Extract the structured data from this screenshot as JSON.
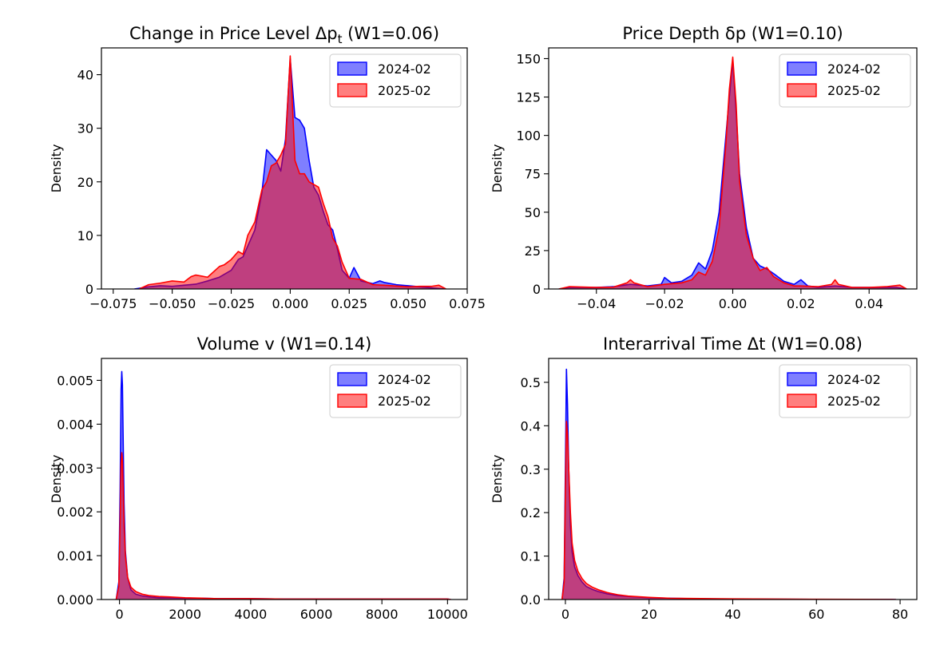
{
  "colors": {
    "series_a_fill": "#0000ff",
    "series_a_edge": "#0000ff",
    "series_b_fill": "#ff0000",
    "series_b_edge": "#ff0000"
  },
  "chart_data": [
    {
      "type": "area",
      "title": "Change in Price Level Δp",
      "title_sub": "t",
      "title_suffix": " (W1=0.06)",
      "xlabel": "",
      "ylabel": "Density",
      "xlim": [
        -0.08,
        0.075
      ],
      "ylim": [
        0,
        45
      ],
      "xticks": [
        -0.075,
        -0.05,
        -0.025,
        0.0,
        0.025,
        0.05,
        0.075
      ],
      "xtick_labels": [
        "−0.075",
        "−0.050",
        "−0.025",
        "0.000",
        "0.025",
        "0.050",
        "0.075"
      ],
      "yticks": [
        0,
        10,
        20,
        30,
        40
      ],
      "ytick_labels": [
        "0",
        "10",
        "20",
        "30",
        "40"
      ],
      "legend": "top-right",
      "series": [
        {
          "name": "2024-02",
          "x": [
            -0.066,
            -0.06,
            -0.055,
            -0.05,
            -0.045,
            -0.04,
            -0.035,
            -0.03,
            -0.025,
            -0.022,
            -0.02,
            -0.018,
            -0.015,
            -0.012,
            -0.01,
            -0.008,
            -0.006,
            -0.004,
            -0.002,
            0.0,
            0.002,
            0.004,
            0.006,
            0.008,
            0.01,
            0.012,
            0.014,
            0.016,
            0.018,
            0.02,
            0.022,
            0.025,
            0.027,
            0.03,
            0.035,
            0.038,
            0.04,
            0.045,
            0.05,
            0.055,
            0.06,
            0.066
          ],
          "y": [
            0,
            0.4,
            0.6,
            0.5,
            0.7,
            0.9,
            1.5,
            2.2,
            3.5,
            5.5,
            6,
            8,
            11,
            18,
            26,
            25,
            24,
            22,
            28,
            43,
            32,
            31.5,
            30,
            24,
            19,
            17.5,
            14.5,
            12,
            11,
            7.5,
            3.5,
            2,
            4,
            1.5,
            1,
            1.5,
            1.2,
            0.8,
            0.6,
            0.4,
            0.2,
            0
          ]
        },
        {
          "name": "2025-02",
          "x": [
            -0.064,
            -0.06,
            -0.055,
            -0.05,
            -0.045,
            -0.042,
            -0.04,
            -0.035,
            -0.03,
            -0.028,
            -0.025,
            -0.022,
            -0.02,
            -0.018,
            -0.015,
            -0.012,
            -0.01,
            -0.008,
            -0.006,
            -0.004,
            -0.002,
            0.0,
            0.002,
            0.004,
            0.006,
            0.008,
            0.01,
            0.012,
            0.014,
            0.016,
            0.018,
            0.02,
            0.022,
            0.025,
            0.03,
            0.035,
            0.04,
            0.05,
            0.055,
            0.06,
            0.063,
            0.066
          ],
          "y": [
            0,
            0.8,
            1.1,
            1.5,
            1.3,
            2.3,
            2.6,
            2.2,
            4.2,
            4.5,
            5.5,
            7,
            6.5,
            10,
            12.5,
            18.5,
            20,
            23,
            23.5,
            25,
            27,
            43.5,
            24,
            21.5,
            21.5,
            20,
            19.5,
            19,
            16,
            13.5,
            9.5,
            8,
            5,
            2,
            1.8,
            0.8,
            0.7,
            0.4,
            0.5,
            0.5,
            0.7,
            0
          ]
        }
      ]
    },
    {
      "type": "area",
      "title": "Price Depth δp",
      "title_sub": "",
      "title_suffix": " (W1=0.10)",
      "xlabel": "",
      "ylabel": "Density",
      "xlim": [
        -0.054,
        0.054
      ],
      "ylim": [
        0,
        157
      ],
      "xticks": [
        -0.04,
        -0.02,
        0.0,
        0.02,
        0.04
      ],
      "xtick_labels": [
        "−0.04",
        "−0.02",
        "0.00",
        "0.02",
        "0.04"
      ],
      "yticks": [
        0,
        25,
        50,
        75,
        100,
        125,
        150
      ],
      "ytick_labels": [
        "0",
        "25",
        "50",
        "75",
        "100",
        "125",
        "150"
      ],
      "legend": "top-right",
      "series": [
        {
          "name": "2024-02",
          "x": [
            -0.051,
            -0.048,
            -0.04,
            -0.035,
            -0.03,
            -0.025,
            -0.021,
            -0.02,
            -0.018,
            -0.015,
            -0.012,
            -0.01,
            -0.008,
            -0.006,
            -0.004,
            -0.002,
            -0.001,
            0.0,
            0.001,
            0.002,
            0.004,
            0.006,
            0.008,
            0.01,
            0.012,
            0.015,
            0.018,
            0.02,
            0.022,
            0.025,
            0.03,
            0.035,
            0.04,
            0.048,
            0.051
          ],
          "y": [
            0,
            1,
            1,
            1.5,
            3,
            2,
            3,
            7.5,
            4,
            5,
            9,
            17,
            13,
            25,
            50,
            100,
            125,
            149,
            115,
            75,
            40,
            20,
            15,
            13,
            10,
            5,
            3,
            6,
            2,
            1,
            2,
            1,
            1,
            1,
            0
          ]
        },
        {
          "name": "2025-02",
          "x": [
            -0.051,
            -0.048,
            -0.04,
            -0.035,
            -0.031,
            -0.03,
            -0.029,
            -0.025,
            -0.02,
            -0.015,
            -0.012,
            -0.01,
            -0.008,
            -0.006,
            -0.004,
            -0.002,
            -0.001,
            0.0,
            0.001,
            0.002,
            0.004,
            0.006,
            0.008,
            0.01,
            0.012,
            0.015,
            0.018,
            0.02,
            0.025,
            0.029,
            0.03,
            0.031,
            0.035,
            0.04,
            0.045,
            0.049,
            0.051
          ],
          "y": [
            0,
            1.5,
            1,
            1.2,
            4,
            6,
            4,
            1.5,
            3,
            4,
            6,
            11,
            9,
            18,
            40,
            95,
            130,
            151,
            120,
            70,
            35,
            20,
            12,
            14,
            8,
            4,
            2,
            2,
            1.5,
            3,
            6,
            3,
            1,
            1,
            1.5,
            2.5,
            0
          ]
        }
      ]
    },
    {
      "type": "area",
      "title": "Volume v",
      "title_sub": "",
      "title_suffix": " (W1=0.14)",
      "xlabel": "",
      "ylabel": "Density",
      "xlim": [
        -550,
        10600
      ],
      "ylim": [
        0,
        0.0055
      ],
      "xticks": [
        0,
        2000,
        4000,
        6000,
        8000,
        10000
      ],
      "xtick_labels": [
        "0",
        "2000",
        "4000",
        "6000",
        "8000",
        "10000"
      ],
      "yticks": [
        0,
        0.001,
        0.002,
        0.003,
        0.004,
        0.005
      ],
      "ytick_labels": [
        "0.000",
        "0.001",
        "0.002",
        "0.003",
        "0.004",
        "0.005"
      ],
      "legend": "top-right",
      "series": [
        {
          "name": "2024-02",
          "x": [
            -100,
            -20,
            20,
            50,
            70,
            90,
            110,
            140,
            180,
            250,
            350,
            500,
            700,
            900,
            1200,
            1500,
            2000,
            2500,
            3000,
            4000,
            5000,
            6000,
            7000,
            8000,
            9000,
            10000,
            10100
          ],
          "y": [
            0,
            0.0004,
            0.0025,
            0.0048,
            0.0052,
            0.0049,
            0.0038,
            0.0022,
            0.0011,
            0.0005,
            0.00022,
            0.00012,
            8e-05,
            6e-05,
            4e-05,
            4e-05,
            3e-05,
            3e-05,
            2e-05,
            2e-05,
            1e-05,
            1e-05,
            1e-05,
            1e-05,
            1e-05,
            1e-05,
            0
          ]
        },
        {
          "name": "2025-02",
          "x": [
            -100,
            -20,
            20,
            50,
            70,
            90,
            110,
            140,
            180,
            250,
            350,
            500,
            700,
            900,
            1200,
            1500,
            2000,
            2500,
            3000,
            4000,
            5000,
            6000,
            7000,
            8000,
            9000,
            10000,
            10100
          ],
          "y": [
            0,
            0.0003,
            0.0018,
            0.0031,
            0.00335,
            0.0032,
            0.0026,
            0.0017,
            0.001,
            0.0005,
            0.00028,
            0.00018,
            0.00012,
            9e-05,
            7e-05,
            6e-05,
            4e-05,
            3e-05,
            2e-05,
            2e-05,
            1e-05,
            1e-05,
            1e-05,
            1e-05,
            1e-05,
            1e-05,
            0
          ]
        }
      ]
    },
    {
      "type": "area",
      "title": "Interarrival Time Δt",
      "title_sub": "",
      "title_suffix": " (W1=0.08)",
      "xlabel": "",
      "ylabel": "Density",
      "xlim": [
        -4,
        84
      ],
      "ylim": [
        0,
        0.555
      ],
      "xticks": [
        0,
        20,
        40,
        60,
        80
      ],
      "xtick_labels": [
        "0",
        "20",
        "40",
        "60",
        "80"
      ],
      "yticks": [
        0,
        0.1,
        0.2,
        0.3,
        0.4,
        0.5
      ],
      "ytick_labels": [
        "0.0",
        "0.1",
        "0.2",
        "0.3",
        "0.4",
        "0.5"
      ],
      "legend": "top-right",
      "series": [
        {
          "name": "2024-02",
          "x": [
            -0.8,
            -0.3,
            0.0,
            0.25,
            0.5,
            0.8,
            1.2,
            1.6,
            2.2,
            3.0,
            4.0,
            5.0,
            6.5,
            8.0,
            10,
            12.5,
            15,
            20,
            25,
            30,
            40,
            50,
            60,
            70,
            78,
            79
          ],
          "y": [
            0,
            0.05,
            0.3,
            0.53,
            0.45,
            0.3,
            0.17,
            0.11,
            0.075,
            0.055,
            0.04,
            0.03,
            0.023,
            0.018,
            0.013,
            0.009,
            0.007,
            0.004,
            0.003,
            0.002,
            0.001,
            0.0005,
            0.0003,
            0.0002,
            0.0001,
            0
          ]
        },
        {
          "name": "2025-02",
          "x": [
            -0.8,
            -0.3,
            0.0,
            0.25,
            0.5,
            0.8,
            1.2,
            1.6,
            2.2,
            3.0,
            4.0,
            5.0,
            6.5,
            8.0,
            10,
            12.5,
            15,
            20,
            25,
            30,
            40,
            50,
            60,
            70,
            78,
            79
          ],
          "y": [
            0,
            0.04,
            0.25,
            0.41,
            0.38,
            0.3,
            0.2,
            0.13,
            0.09,
            0.065,
            0.048,
            0.037,
            0.028,
            0.022,
            0.016,
            0.011,
            0.008,
            0.005,
            0.003,
            0.0025,
            0.0015,
            0.001,
            0.0006,
            0.0003,
            0.0002,
            0
          ]
        }
      ]
    }
  ]
}
